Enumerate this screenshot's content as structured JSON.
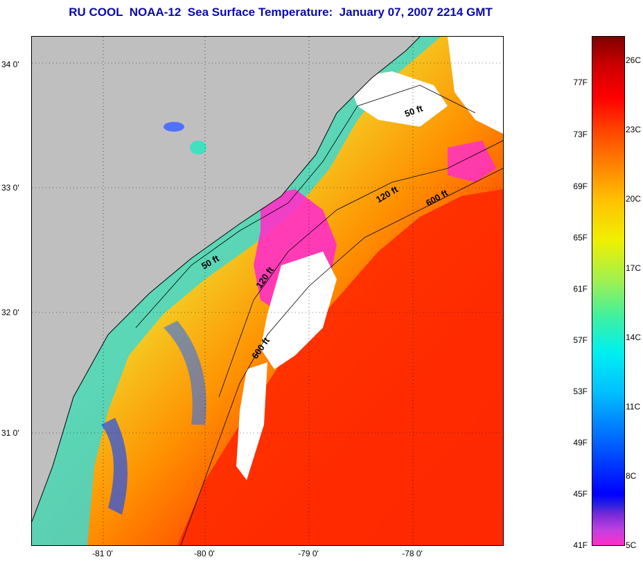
{
  "title": "RU COOL  NOAA-12  Sea Surface Temperature:  January 07, 2007 2214 GMT",
  "map": {
    "lat_labels": [
      "34 0'",
      "33 0'",
      "32 0'",
      "31 0'"
    ],
    "lon_labels": [
      "-81 0'",
      "-80 0'",
      "-79 0'",
      "-78 0'"
    ],
    "depth_contours": [
      "50 ft",
      "50 ft",
      "120 ft",
      "120 ft",
      "600 ft",
      "600 ft"
    ],
    "colors": {
      "land": "#bfbfbf",
      "cloud": "#ffffff",
      "warm": "#ff2a00",
      "cold": "#ff2fc8"
    }
  },
  "colorbar": {
    "fahrenheit": [
      "77F",
      "73F",
      "69F",
      "65F",
      "61F",
      "57F",
      "53F",
      "49F",
      "45F",
      "41F"
    ],
    "celsius": [
      "26C",
      "23C",
      "20C",
      "17C",
      "14C",
      "11C",
      "8C",
      "5C"
    ]
  }
}
